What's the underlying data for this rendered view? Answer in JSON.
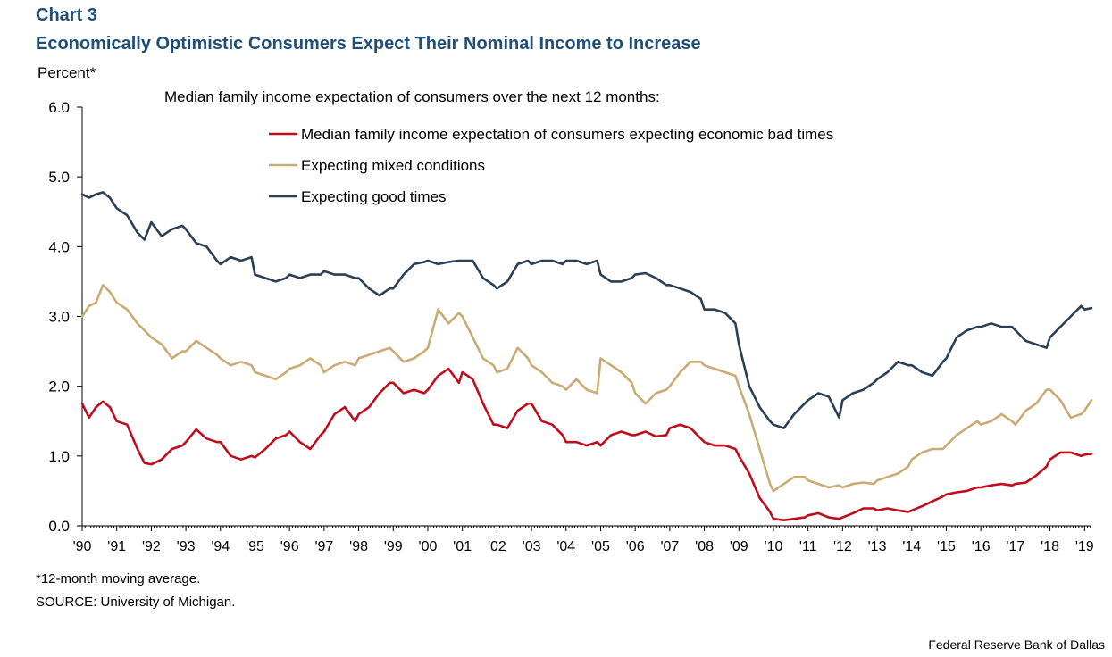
{
  "header": {
    "label": "Chart 3",
    "title": "Economically Optimistic Consumers Expect Their Nominal Income to Increase"
  },
  "y_unit": "Percent*",
  "legend_heading": "Median family income expectation of consumers over the next 12 months:",
  "footnotes": {
    "note": "*12-month moving average.",
    "source": "SOURCE: University of Michigan."
  },
  "credit": "Federal Reserve Bank of Dallas",
  "colors": {
    "bad": "#c00d1e",
    "mixed": "#c9ab74",
    "good": "#2b3f55",
    "axis": "#000000"
  },
  "chart_data": {
    "type": "line",
    "title": "Economically Optimistic Consumers Expect Their Nominal Income to Increase",
    "ylabel": "Percent*",
    "ylim": [
      0,
      6
    ],
    "yticks": [
      "0.0",
      "1.0",
      "2.0",
      "3.0",
      "4.0",
      "5.0",
      "6.0"
    ],
    "xlim": [
      1990,
      2019.2
    ],
    "xticks": [
      "'90",
      "'91",
      "'92",
      "'93",
      "'94",
      "'95",
      "'96",
      "'97",
      "'98",
      "'99",
      "'00",
      "'01",
      "'02",
      "'03",
      "'04",
      "'05",
      "'06",
      "'07",
      "'08",
      "'09",
      "'10",
      "'11",
      "'12",
      "'13",
      "'14",
      "'15",
      "'16",
      "'17",
      "'18",
      "'19"
    ],
    "grid": false,
    "legend": "top-center",
    "series": [
      {
        "name": "Median family income expectation of consumers expecting economic bad times",
        "color": "#c00d1e",
        "x": [
          1990.0,
          1990.2,
          1990.4,
          1990.6,
          1990.8,
          1991.0,
          1991.3,
          1991.6,
          1991.8,
          1992.0,
          1992.3,
          1992.6,
          1992.9,
          1993.0,
          1993.3,
          1993.6,
          1993.9,
          1994.0,
          1994.3,
          1994.6,
          1994.9,
          1995.0,
          1995.3,
          1995.6,
          1995.9,
          1996.0,
          1996.3,
          1996.6,
          1996.9,
          1997.0,
          1997.3,
          1997.6,
          1997.9,
          1998.0,
          1998.3,
          1998.6,
          1998.9,
          1999.0,
          1999.3,
          1999.6,
          1999.9,
          2000.0,
          2000.3,
          2000.6,
          2000.9,
          2001.0,
          2001.3,
          2001.6,
          2001.9,
          2002.0,
          2002.3,
          2002.6,
          2002.9,
          2003.0,
          2003.3,
          2003.6,
          2003.9,
          2004.0,
          2004.3,
          2004.6,
          2004.9,
          2005.0,
          2005.3,
          2005.6,
          2005.9,
          2006.0,
          2006.3,
          2006.6,
          2006.9,
          2007.0,
          2007.3,
          2007.6,
          2007.9,
          2008.0,
          2008.3,
          2008.6,
          2008.9,
          2009.0,
          2009.3,
          2009.6,
          2009.9,
          2010.0,
          2010.3,
          2010.6,
          2010.9,
          2011.0,
          2011.3,
          2011.6,
          2011.9,
          2012.0,
          2012.3,
          2012.6,
          2012.9,
          2013.0,
          2013.3,
          2013.6,
          2013.9,
          2014.0,
          2014.3,
          2014.6,
          2014.9,
          2015.0,
          2015.3,
          2015.6,
          2015.9,
          2016.0,
          2016.3,
          2016.6,
          2016.9,
          2017.0,
          2017.3,
          2017.6,
          2017.9,
          2018.0,
          2018.3,
          2018.6,
          2018.9,
          2019.0,
          2019.2
        ],
        "values": [
          1.75,
          1.55,
          1.7,
          1.78,
          1.7,
          1.5,
          1.45,
          1.1,
          0.9,
          0.88,
          0.95,
          1.1,
          1.15,
          1.2,
          1.38,
          1.25,
          1.2,
          1.2,
          1.0,
          0.95,
          1.0,
          0.98,
          1.1,
          1.25,
          1.3,
          1.35,
          1.2,
          1.1,
          1.3,
          1.35,
          1.6,
          1.7,
          1.5,
          1.6,
          1.7,
          1.9,
          2.05,
          2.05,
          1.9,
          1.95,
          1.9,
          1.95,
          2.15,
          2.25,
          2.05,
          2.2,
          2.1,
          1.75,
          1.45,
          1.45,
          1.4,
          1.65,
          1.75,
          1.75,
          1.5,
          1.45,
          1.3,
          1.2,
          1.2,
          1.15,
          1.2,
          1.15,
          1.3,
          1.35,
          1.3,
          1.3,
          1.35,
          1.28,
          1.3,
          1.4,
          1.45,
          1.4,
          1.25,
          1.2,
          1.15,
          1.15,
          1.1,
          1.0,
          0.75,
          0.4,
          0.2,
          0.1,
          0.08,
          0.1,
          0.12,
          0.15,
          0.18,
          0.12,
          0.1,
          0.12,
          0.18,
          0.25,
          0.25,
          0.22,
          0.25,
          0.22,
          0.2,
          0.22,
          0.28,
          0.35,
          0.42,
          0.45,
          0.48,
          0.5,
          0.55,
          0.55,
          0.58,
          0.6,
          0.58,
          0.6,
          0.62,
          0.72,
          0.85,
          0.95,
          1.05,
          1.05,
          1.0,
          1.02,
          1.03
        ]
      },
      {
        "name": "Expecting mixed conditions",
        "color": "#c9ab74",
        "x": [
          1990.0,
          1990.2,
          1990.4,
          1990.6,
          1990.8,
          1991.0,
          1991.3,
          1991.6,
          1991.8,
          1992.0,
          1992.3,
          1992.6,
          1992.9,
          1993.0,
          1993.3,
          1993.6,
          1993.9,
          1994.0,
          1994.3,
          1994.6,
          1994.9,
          1995.0,
          1995.3,
          1995.6,
          1995.9,
          1996.0,
          1996.3,
          1996.6,
          1996.9,
          1997.0,
          1997.3,
          1997.6,
          1997.9,
          1998.0,
          1998.3,
          1998.6,
          1998.9,
          1999.0,
          1999.3,
          1999.6,
          1999.9,
          2000.0,
          2000.3,
          2000.6,
          2000.9,
          2001.0,
          2001.3,
          2001.6,
          2001.9,
          2002.0,
          2002.3,
          2002.6,
          2002.9,
          2003.0,
          2003.3,
          2003.6,
          2003.9,
          2004.0,
          2004.3,
          2004.6,
          2004.9,
          2005.0,
          2005.3,
          2005.6,
          2005.9,
          2006.0,
          2006.3,
          2006.6,
          2006.9,
          2007.0,
          2007.3,
          2007.6,
          2007.9,
          2008.0,
          2008.3,
          2008.6,
          2008.9,
          2009.0,
          2009.3,
          2009.6,
          2009.9,
          2010.0,
          2010.3,
          2010.6,
          2010.9,
          2011.0,
          2011.3,
          2011.6,
          2011.9,
          2012.0,
          2012.3,
          2012.6,
          2012.9,
          2013.0,
          2013.3,
          2013.6,
          2013.9,
          2014.0,
          2014.3,
          2014.6,
          2014.9,
          2015.0,
          2015.3,
          2015.6,
          2015.9,
          2016.0,
          2016.3,
          2016.6,
          2016.9,
          2017.0,
          2017.3,
          2017.6,
          2017.9,
          2018.0,
          2018.3,
          2018.6,
          2018.9,
          2019.0,
          2019.2
        ],
        "values": [
          3.0,
          3.15,
          3.2,
          3.45,
          3.35,
          3.2,
          3.1,
          2.9,
          2.8,
          2.7,
          2.6,
          2.4,
          2.5,
          2.5,
          2.65,
          2.55,
          2.45,
          2.4,
          2.3,
          2.35,
          2.3,
          2.2,
          2.15,
          2.1,
          2.2,
          2.25,
          2.3,
          2.4,
          2.3,
          2.2,
          2.3,
          2.35,
          2.3,
          2.4,
          2.45,
          2.5,
          2.55,
          2.5,
          2.35,
          2.4,
          2.5,
          2.55,
          3.1,
          2.9,
          3.05,
          3.0,
          2.7,
          2.4,
          2.3,
          2.2,
          2.25,
          2.55,
          2.4,
          2.3,
          2.2,
          2.05,
          2.0,
          1.95,
          2.1,
          1.95,
          1.9,
          2.4,
          2.3,
          2.2,
          2.05,
          1.9,
          1.75,
          1.9,
          1.95,
          2.0,
          2.2,
          2.35,
          2.35,
          2.3,
          2.25,
          2.2,
          2.15,
          2.0,
          1.6,
          1.1,
          0.6,
          0.5,
          0.6,
          0.7,
          0.7,
          0.65,
          0.6,
          0.55,
          0.58,
          0.55,
          0.6,
          0.62,
          0.6,
          0.65,
          0.7,
          0.75,
          0.85,
          0.95,
          1.05,
          1.1,
          1.1,
          1.15,
          1.3,
          1.4,
          1.5,
          1.45,
          1.5,
          1.6,
          1.5,
          1.45,
          1.65,
          1.75,
          1.95,
          1.95,
          1.8,
          1.55,
          1.6,
          1.65,
          1.8
        ]
      },
      {
        "name": "Expecting good times",
        "color": "#2b3f55",
        "x": [
          1990.0,
          1990.2,
          1990.4,
          1990.6,
          1990.8,
          1991.0,
          1991.3,
          1991.6,
          1991.8,
          1992.0,
          1992.3,
          1992.6,
          1992.9,
          1993.0,
          1993.3,
          1993.6,
          1993.9,
          1994.0,
          1994.3,
          1994.6,
          1994.9,
          1995.0,
          1995.3,
          1995.6,
          1995.9,
          1996.0,
          1996.3,
          1996.6,
          1996.9,
          1997.0,
          1997.3,
          1997.6,
          1997.9,
          1998.0,
          1998.3,
          1998.6,
          1998.9,
          1999.0,
          1999.3,
          1999.6,
          1999.9,
          2000.0,
          2000.3,
          2000.6,
          2000.9,
          2001.0,
          2001.3,
          2001.6,
          2001.9,
          2002.0,
          2002.3,
          2002.6,
          2002.9,
          2003.0,
          2003.3,
          2003.6,
          2003.9,
          2004.0,
          2004.3,
          2004.6,
          2004.9,
          2005.0,
          2005.3,
          2005.6,
          2005.9,
          2006.0,
          2006.3,
          2006.6,
          2006.9,
          2007.0,
          2007.3,
          2007.6,
          2007.9,
          2008.0,
          2008.3,
          2008.6,
          2008.9,
          2009.0,
          2009.3,
          2009.6,
          2009.9,
          2010.0,
          2010.3,
          2010.6,
          2010.9,
          2011.0,
          2011.3,
          2011.6,
          2011.9,
          2012.0,
          2012.3,
          2012.6,
          2012.9,
          2013.0,
          2013.3,
          2013.6,
          2013.9,
          2014.0,
          2014.3,
          2014.6,
          2014.9,
          2015.0,
          2015.3,
          2015.6,
          2015.9,
          2016.0,
          2016.3,
          2016.6,
          2016.9,
          2017.0,
          2017.3,
          2017.6,
          2017.9,
          2018.0,
          2018.3,
          2018.6,
          2018.9,
          2019.0,
          2019.2
        ],
        "values": [
          4.75,
          4.7,
          4.75,
          4.78,
          4.7,
          4.55,
          4.45,
          4.2,
          4.1,
          4.35,
          4.15,
          4.25,
          4.3,
          4.25,
          4.05,
          4.0,
          3.8,
          3.75,
          3.85,
          3.8,
          3.85,
          3.6,
          3.55,
          3.5,
          3.55,
          3.6,
          3.55,
          3.6,
          3.6,
          3.65,
          3.6,
          3.6,
          3.55,
          3.55,
          3.4,
          3.3,
          3.4,
          3.4,
          3.6,
          3.75,
          3.78,
          3.8,
          3.75,
          3.78,
          3.8,
          3.8,
          3.8,
          3.55,
          3.45,
          3.4,
          3.5,
          3.75,
          3.8,
          3.75,
          3.8,
          3.8,
          3.75,
          3.8,
          3.8,
          3.75,
          3.8,
          3.6,
          3.5,
          3.5,
          3.55,
          3.6,
          3.62,
          3.55,
          3.45,
          3.45,
          3.4,
          3.35,
          3.25,
          3.1,
          3.1,
          3.05,
          2.9,
          2.6,
          2.0,
          1.7,
          1.5,
          1.45,
          1.4,
          1.6,
          1.75,
          1.8,
          1.9,
          1.85,
          1.55,
          1.8,
          1.9,
          1.95,
          2.05,
          2.1,
          2.2,
          2.35,
          2.3,
          2.3,
          2.2,
          2.15,
          2.35,
          2.4,
          2.7,
          2.8,
          2.85,
          2.85,
          2.9,
          2.85,
          2.85,
          2.8,
          2.65,
          2.6,
          2.55,
          2.7,
          2.85,
          3.0,
          3.15,
          3.1,
          3.12
        ]
      }
    ]
  }
}
